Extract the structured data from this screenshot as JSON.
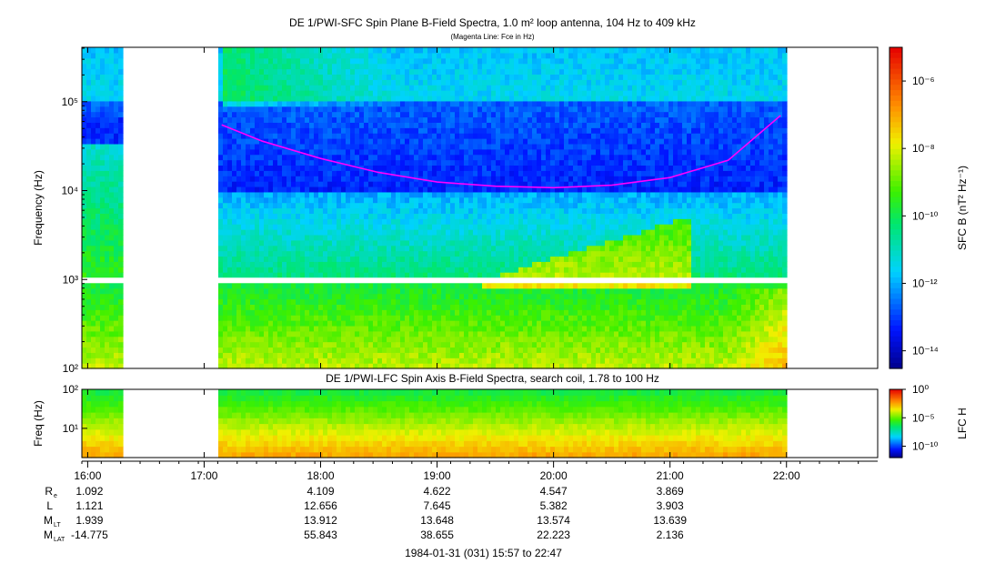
{
  "top_panel": {
    "title": "DE 1/PWI-SFC  Spin Plane B-Field Spectra, 1.0 m² loop antenna, 104 Hz to 409 kHz",
    "subtitle": "(Magenta Line: Fce in Hz)",
    "ylabel": "Frequency (Hz)",
    "colorbar_label": "SFC B (nT² Hz⁻¹)"
  },
  "bottom_panel": {
    "title": "DE 1/PWI-LFC  Spin Axis B-Field Spectra, search coil, 1.78 to 100 Hz",
    "ylabel": "Freq (Hz)",
    "colorbar_label": "LFC H"
  },
  "footer": {
    "time_range": "1984-01-31 (031) 15:57 to 22:47"
  },
  "chart_data": [
    {
      "type": "heatmap",
      "name": "sfc",
      "x_range_hours": [
        15.95,
        22.783
      ],
      "ylim": [
        100,
        409000
      ],
      "yscale": "log",
      "yticks": [
        {
          "value": 100,
          "label": "10²"
        },
        {
          "value": 1000,
          "label": "10³"
        },
        {
          "value": 10000,
          "label": "10⁴"
        },
        {
          "value": 100000,
          "label": "10⁵"
        }
      ],
      "data_gaps_hours": [
        [
          16.32,
          17.13
        ],
        [
          22.0,
          22.783
        ]
      ],
      "colorbar": {
        "scale": "log",
        "range": [
          3e-15,
          1e-05
        ],
        "ticks": [
          {
            "value": 1e-06,
            "label": "10⁻⁶"
          },
          {
            "value": 1e-08,
            "label": "10⁻⁸"
          },
          {
            "value": 1e-10,
            "label": "10⁻¹⁰"
          },
          {
            "value": 1e-12,
            "label": "10⁻¹²"
          },
          {
            "value": 1e-14,
            "label": "10⁻¹⁴"
          }
        ]
      },
      "fce_line": {
        "color": "#ff00ff",
        "points": [
          {
            "t": 17.15,
            "f": 55000
          },
          {
            "t": 17.5,
            "f": 36000
          },
          {
            "t": 18.0,
            "f": 23000
          },
          {
            "t": 18.5,
            "f": 16000
          },
          {
            "t": 19.0,
            "f": 12500
          },
          {
            "t": 19.5,
            "f": 11200
          },
          {
            "t": 20.0,
            "f": 10800
          },
          {
            "t": 20.5,
            "f": 11500
          },
          {
            "t": 21.0,
            "f": 14000
          },
          {
            "t": 21.5,
            "f": 22000
          },
          {
            "t": 21.95,
            "f": 70000
          }
        ]
      }
    },
    {
      "type": "heatmap",
      "name": "lfc",
      "x_range_hours": [
        15.95,
        22.783
      ],
      "ylim": [
        1.78,
        100
      ],
      "yscale": "log",
      "yticks": [
        {
          "value": 10,
          "label": "10¹"
        },
        {
          "value": 100,
          "label": "10²"
        }
      ],
      "data_gaps_hours": [
        [
          16.32,
          17.13
        ],
        [
          22.0,
          22.783
        ]
      ],
      "colorbar": {
        "scale": "log",
        "range": [
          1e-12,
          1
        ],
        "ticks": [
          {
            "value": 1,
            "label": "10⁰"
          },
          {
            "value": 1e-05,
            "label": "10⁻⁵"
          },
          {
            "value": 1e-10,
            "label": "10⁻¹⁰"
          }
        ]
      }
    }
  ],
  "time_axis": {
    "ticks": [
      {
        "hour": 16,
        "label": "16:00"
      },
      {
        "hour": 17,
        "label": "17:00"
      },
      {
        "hour": 18,
        "label": "18:00"
      },
      {
        "hour": 19,
        "label": "19:00"
      },
      {
        "hour": 20,
        "label": "20:00"
      },
      {
        "hour": 21,
        "label": "21:00"
      },
      {
        "hour": 22,
        "label": "22:00"
      }
    ]
  },
  "ephemeris": {
    "rows": [
      {
        "name": "R",
        "sub": "e",
        "values": [
          "1.092",
          "",
          "4.109",
          "4.622",
          "4.547",
          "3.869",
          ""
        ]
      },
      {
        "name": "L",
        "sub": "",
        "values": [
          "1.121",
          "",
          "12.656",
          "7.645",
          "5.382",
          "3.903",
          ""
        ]
      },
      {
        "name": "M",
        "sub": "LT",
        "values": [
          "1.939",
          "",
          "13.912",
          "13.648",
          "13.574",
          "13.639",
          ""
        ]
      },
      {
        "name": "M",
        "sub": "LAT",
        "values": [
          "-14.775",
          "",
          "55.843",
          "38.655",
          "22.223",
          "2.136",
          ""
        ]
      }
    ]
  }
}
